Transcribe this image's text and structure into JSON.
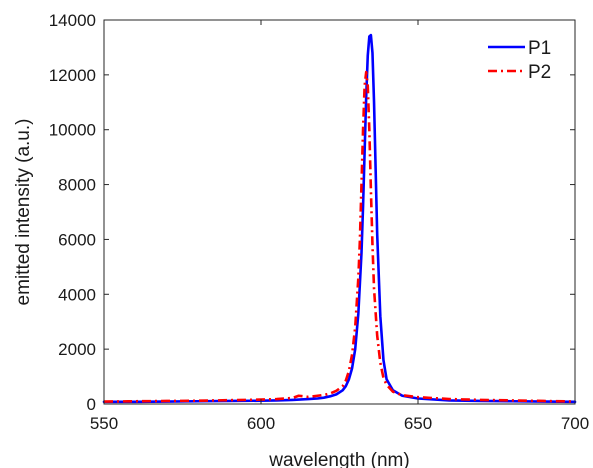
{
  "chart_data": {
    "type": "line",
    "xlabel": "wavelength (nm)",
    "ylabel": "emitted intensity (a.u.)",
    "xlim": [
      550,
      700
    ],
    "ylim": [
      0,
      14000
    ],
    "xticks": [
      550,
      600,
      650,
      700
    ],
    "yticks": [
      0,
      2000,
      4000,
      6000,
      8000,
      10000,
      12000,
      14000
    ],
    "grid": false,
    "legend_position": "top-right",
    "series": [
      {
        "name": "P1",
        "color": "#0000ff",
        "style": "solid",
        "x": [
          550,
          560,
          570,
          580,
          590,
          600,
          605,
          610,
          615,
          618,
          620,
          622,
          624,
          626,
          627,
          628,
          629,
          630,
          631,
          632,
          632.5,
          633,
          633.5,
          634,
          634.5,
          635,
          635.5,
          636,
          636.5,
          637,
          638,
          639,
          640,
          642,
          645,
          650,
          660,
          670,
          680,
          690,
          700
        ],
        "y": [
          80,
          80,
          90,
          100,
          110,
          120,
          130,
          150,
          180,
          200,
          230,
          280,
          350,
          500,
          650,
          900,
          1300,
          2000,
          3300,
          5500,
          7200,
          9200,
          11200,
          12700,
          13400,
          13450,
          12800,
          11000,
          8600,
          6200,
          3200,
          1600,
          900,
          500,
          300,
          200,
          130,
          110,
          100,
          90,
          80
        ]
      },
      {
        "name": "P2",
        "color": "#ff0000",
        "style": "dashdot",
        "x": [
          550,
          560,
          570,
          580,
          590,
          600,
          605,
          610,
          612,
          615,
          618,
          620,
          622,
          624,
          626,
          627,
          628,
          629,
          630,
          631,
          631.5,
          632,
          632.5,
          633,
          633.5,
          634,
          634.5,
          635,
          635.5,
          636,
          637,
          638,
          639,
          640,
          642,
          645,
          650,
          660,
          670,
          680,
          690,
          700
        ],
        "y": [
          90,
          100,
          110,
          120,
          140,
          160,
          180,
          220,
          300,
          260,
          300,
          330,
          380,
          480,
          650,
          850,
          1200,
          1800,
          2800,
          4600,
          6000,
          8000,
          10000,
          11600,
          12100,
          11600,
          10000,
          7800,
          5800,
          4200,
          2500,
          1500,
          950,
          700,
          450,
          320,
          250,
          180,
          150,
          130,
          110,
          90
        ]
      }
    ]
  }
}
